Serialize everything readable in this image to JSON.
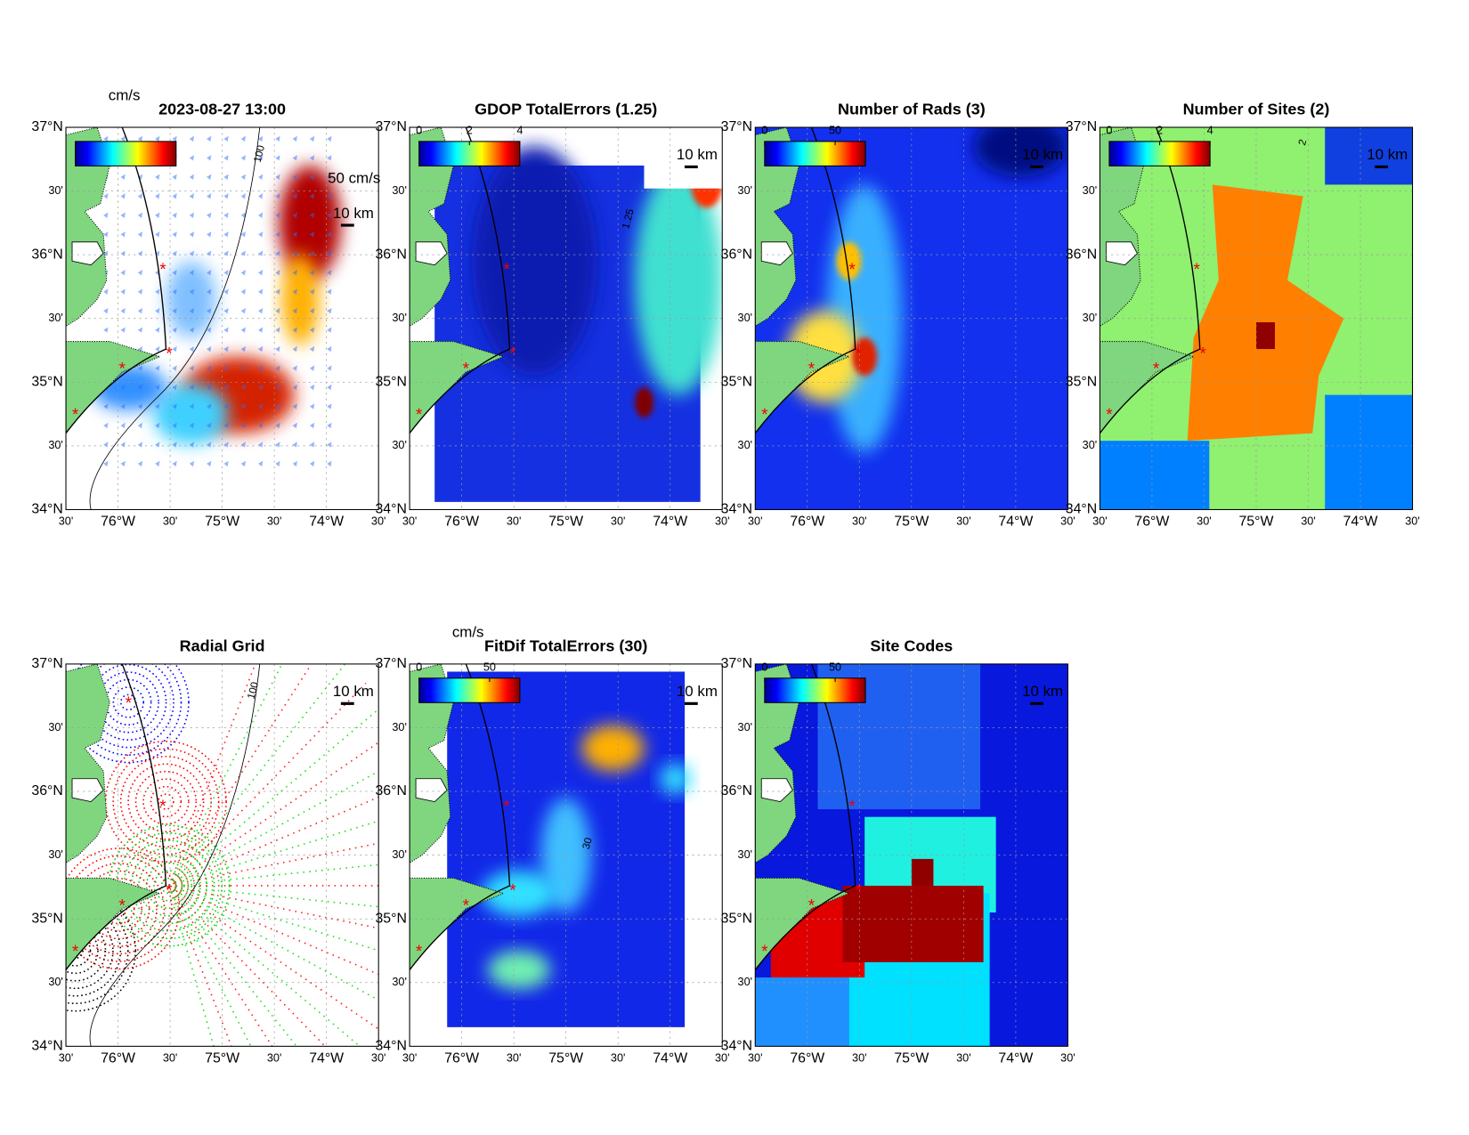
{
  "axes": {
    "y_labels": [
      "37°N",
      "30'",
      "36°N",
      "30'",
      "35°N",
      "30'",
      "34°N"
    ],
    "x_labels": [
      "30'",
      "76°W",
      "30'",
      "75°W",
      "30'",
      "74°W",
      "30'"
    ]
  },
  "panels": [
    {
      "title": "2023-08-27 13:00",
      "unit": "cm/s",
      "vector_scale": "50 cm/s",
      "scale_bar": "10 km",
      "contour_label": "100"
    },
    {
      "title": "GDOP TotalErrors (1.25)",
      "colorbar_ticks": [
        0,
        2,
        4
      ],
      "scale_bar": "10 km",
      "contour_label": "1.25"
    },
    {
      "title": "Number of Rads (3)",
      "colorbar_ticks": [
        0,
        50
      ],
      "scale_bar": "10 km"
    },
    {
      "title": "Number of Sites (2)",
      "colorbar_ticks": [
        0,
        2,
        4
      ],
      "scale_bar": "10 km",
      "contour_label": "2"
    },
    {
      "title": "Radial Grid",
      "scale_bar": "10 km",
      "contour_label": "100"
    },
    {
      "title": "FitDif TotalErrors (30)",
      "unit": "cm/s",
      "colorbar_ticks": [
        0,
        50
      ],
      "scale_bar": "10 km",
      "contour_label": "30"
    },
    {
      "title": "Site Codes",
      "colorbar_ticks": [
        0,
        50
      ],
      "scale_bar": "10 km"
    }
  ]
}
